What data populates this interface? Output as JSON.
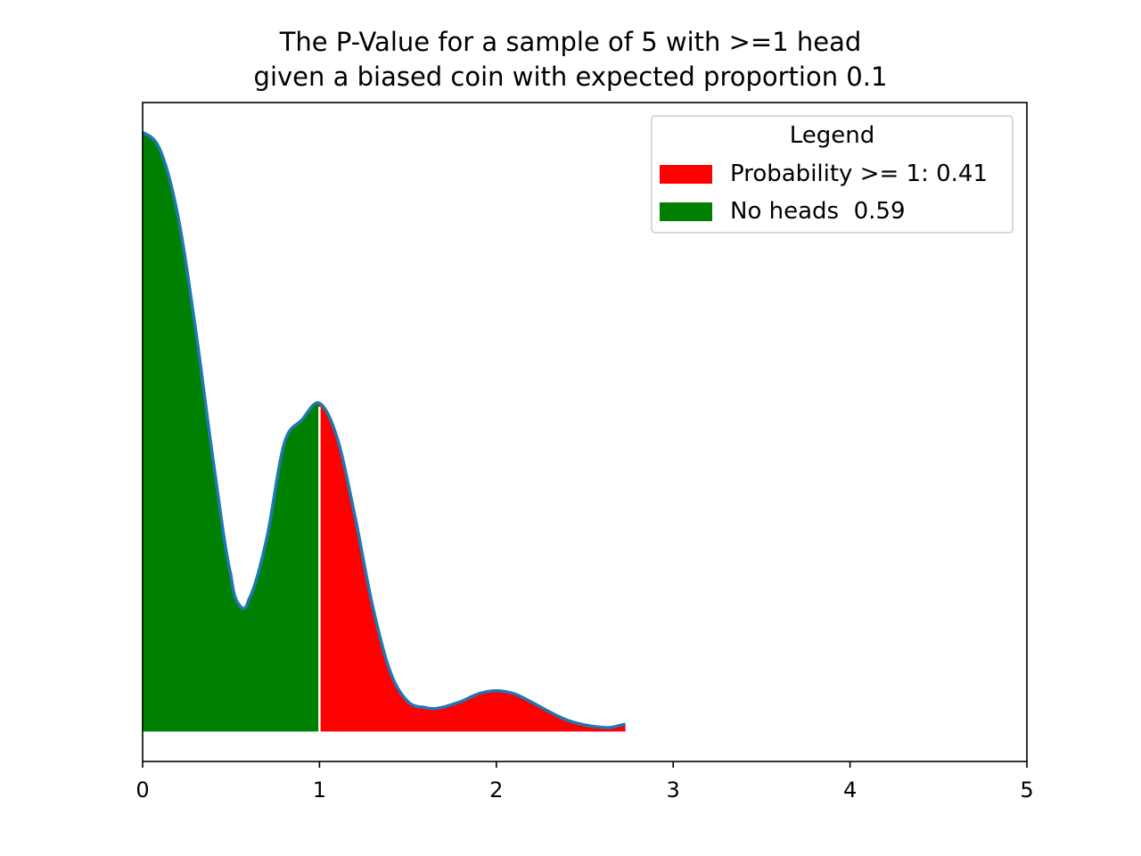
{
  "chart_data": {
    "type": "area",
    "title_lines": [
      "The P-Value for a sample of 5 with >=1 head",
      "given a biased coin with expected proportion 0.1"
    ],
    "xlabel": "",
    "ylabel": "",
    "xlim": [
      0,
      5
    ],
    "ylim": [
      -0.05,
      1.05
    ],
    "x_ticks": [
      "0",
      "1",
      "2",
      "3",
      "4",
      "5"
    ],
    "y_ticks_visible": false,
    "grid": false,
    "split_x": 1,
    "curve": {
      "color": "#1f77b4",
      "x": [
        0,
        0.1,
        0.2,
        0.3,
        0.4,
        0.5,
        0.55,
        0.6,
        0.7,
        0.8,
        0.9,
        1.0,
        1.1,
        1.2,
        1.3,
        1.4,
        1.5,
        1.6,
        1.67,
        1.8,
        1.9,
        2.0,
        2.1,
        2.2,
        2.3,
        2.4,
        2.5,
        2.6,
        2.65,
        2.73
      ],
      "y": [
        1.0,
        0.97,
        0.86,
        0.67,
        0.45,
        0.26,
        0.21,
        0.22,
        0.32,
        0.48,
        0.52,
        0.548,
        0.49,
        0.36,
        0.21,
        0.1,
        0.05,
        0.04,
        0.039,
        0.05,
        0.063,
        0.068,
        0.063,
        0.049,
        0.033,
        0.019,
        0.011,
        0.007,
        0.007,
        0.012
      ]
    },
    "legend": {
      "title": "Legend",
      "position": "upper right",
      "entries": [
        {
          "label": "Probability >= 1: 0.41",
          "color": "#ff0000"
        },
        {
          "label": "No heads  0.59",
          "color": "#008000"
        }
      ]
    }
  }
}
